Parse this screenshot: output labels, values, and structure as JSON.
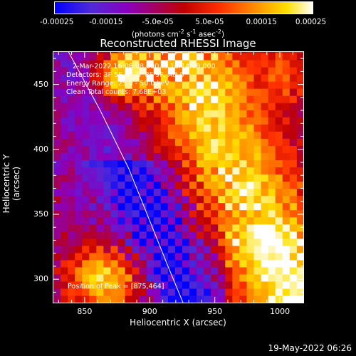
{
  "chart_data": {
    "type": "heatmap",
    "title": "Reconstructed RHESSI Image",
    "xlabel": "Heliocentric X (arcsec)",
    "ylabel": "Heliocentric Y (arcsec)",
    "xlim": [
      826,
      1018
    ],
    "ylim": [
      282,
      475
    ],
    "x_ticks": [
      "850",
      "900",
      "950",
      "1000"
    ],
    "x_tick_values": [
      850,
      900,
      950,
      1000
    ],
    "y_ticks": [
      "300",
      "350",
      "400",
      "450"
    ],
    "y_tick_values": [
      300,
      350,
      400,
      450
    ],
    "colorbar": {
      "range": [
        -0.00025,
        0.00025
      ],
      "ticks": [
        "-0.00025",
        "-0.00015",
        "-5.0e-05",
        "5.0e-05",
        "0.00015",
        "0.00025"
      ],
      "tick_values": [
        -0.00025,
        -0.00015,
        -5e-05,
        5e-05,
        0.00015,
        0.00025
      ],
      "units_main": "(photons cm",
      "units_exp1": "-2",
      "units_mid": " s",
      "units_exp2": "-1",
      "units_mid2": " asec",
      "units_exp3": "-2",
      "units_end": ")",
      "colormap": [
        "#0000ff",
        "#4e2ad8",
        "#8a00c0",
        "#c00000",
        "#ff3000",
        "#ff9000",
        "#ffe000",
        "#ffffff"
      ]
    },
    "limb_curve": {
      "color": "#ffffff",
      "points": [
        [
          836,
          478
        ],
        [
          862,
          430
        ],
        [
          884,
          385
        ],
        [
          900,
          345
        ],
        [
          914,
          310
        ],
        [
          926,
          281
        ]
      ]
    },
    "annotations": [
      "2-Mar-2022 16:08:08.000 to 16:14:08.000",
      "Detectors: 3F 5F 6F 7F 8F 9F, Att 0",
      "Energy Range: 25.0 - 50.0 keV",
      "Clean    Total counts: 7.68E+03"
    ],
    "peak_label": "Position of Peak = [875,464]",
    "peak_position": [
      875,
      464
    ]
  },
  "timestamp": "19-May-2022 06:26"
}
